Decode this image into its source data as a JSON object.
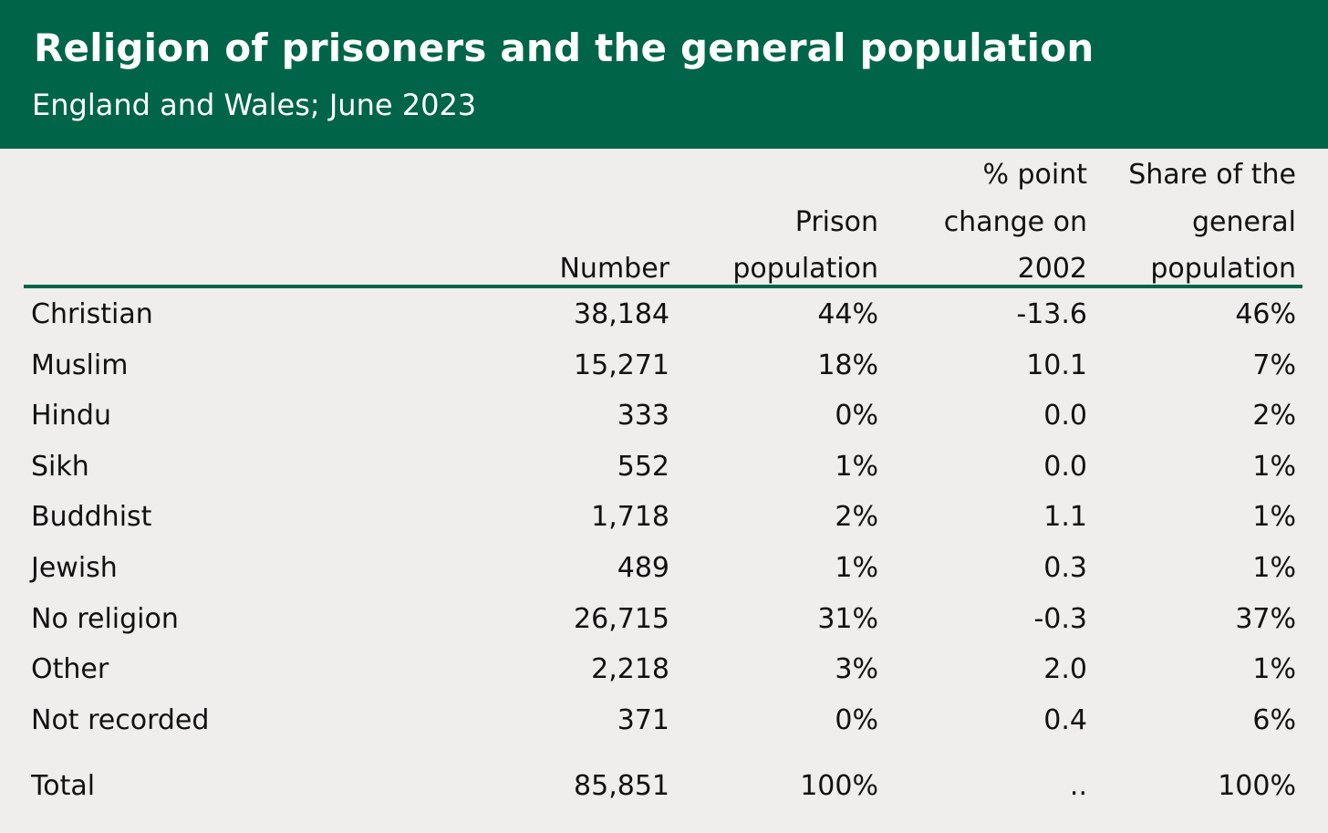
{
  "header": {
    "title": "Religion of prisoners and the general population",
    "subtitle": "England and Wales; June 2023",
    "color": "#006548"
  },
  "columns": [
    {
      "lines": [
        "Number"
      ]
    },
    {
      "lines": [
        "Prison",
        "population"
      ]
    },
    {
      "lines": [
        "% point",
        "change on",
        "2002"
      ]
    },
    {
      "lines": [
        "Share of the",
        "general",
        "population"
      ]
    }
  ],
  "rows": [
    [
      "Christian",
      "38,184",
      "44%",
      "-13.6",
      "46%"
    ],
    [
      "Muslim",
      "15,271",
      "18%",
      "10.1",
      "7%"
    ],
    [
      "Hindu",
      "333",
      "0%",
      "0.0",
      "2%"
    ],
    [
      "Sikh",
      "552",
      "1%",
      "0.0",
      "1%"
    ],
    [
      "Buddhist",
      "1,718",
      "2%",
      "1.1",
      "1%"
    ],
    [
      "Jewish",
      "489",
      "1%",
      "0.3",
      "1%"
    ],
    [
      "No religion",
      "26,715",
      "31%",
      "-0.3",
      "37%"
    ],
    [
      "Other",
      "2,218",
      "3%",
      "2.0",
      "1%"
    ],
    [
      "Not recorded",
      "371",
      "0%",
      "0.4",
      "6%"
    ]
  ],
  "total": [
    "Total",
    "85,851",
    "100%",
    "..",
    "100%"
  ],
  "chart_data": {
    "type": "table",
    "title": "Religion of prisoners and the general population",
    "subtitle": "England and Wales; June 2023",
    "headers": [
      "",
      "Number",
      "Prison population",
      "% point change on 2002",
      "Share of the general population"
    ]
  }
}
